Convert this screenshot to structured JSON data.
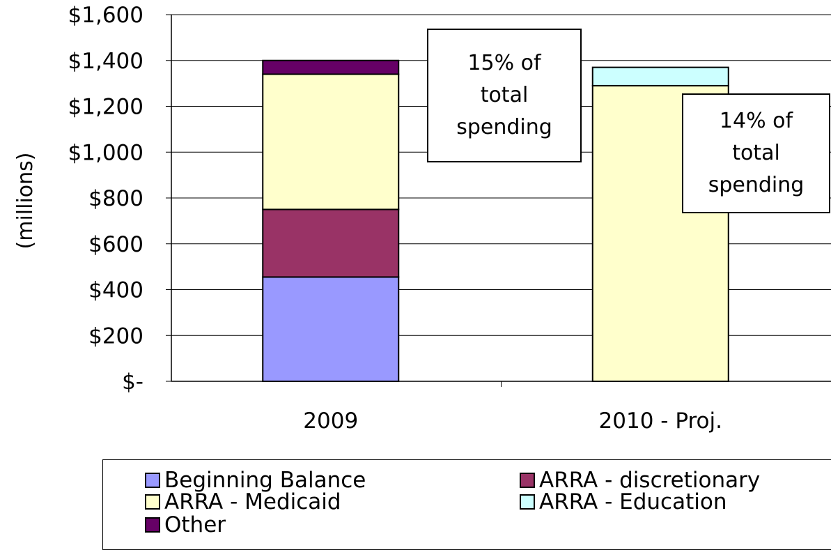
{
  "chart_data": {
    "type": "bar",
    "stacked": true,
    "ylabel": "(millions)",
    "ylim": [
      0,
      1600
    ],
    "yticks": [
      0,
      200,
      400,
      600,
      800,
      1000,
      1200,
      1400,
      1600
    ],
    "ytick_labels": [
      "$-",
      "$200",
      "$400",
      "$600",
      "$800",
      "$1,000",
      "$1,200",
      "$1,400",
      "$1,600"
    ],
    "categories": [
      "2009",
      "2010 - Proj."
    ],
    "series": [
      {
        "name": "Beginning Balance",
        "color": "#9999ff",
        "values": [
          455,
          0
        ]
      },
      {
        "name": "ARRA - discretionary",
        "color": "#993366",
        "values": [
          295,
          0
        ]
      },
      {
        "name": "ARRA - Medicaid",
        "color": "#ffffcc",
        "values": [
          590,
          1290
        ]
      },
      {
        "name": "ARRA - Education",
        "color": "#ccffff",
        "values": [
          0,
          80
        ]
      },
      {
        "name": "Other",
        "color": "#660066",
        "values": [
          60,
          0
        ]
      }
    ],
    "annotations": [
      {
        "text": "15% of\ntotal\nspending"
      },
      {
        "text": "14% of\ntotal\nspending"
      }
    ],
    "grid": true,
    "legend_position": "bottom"
  }
}
